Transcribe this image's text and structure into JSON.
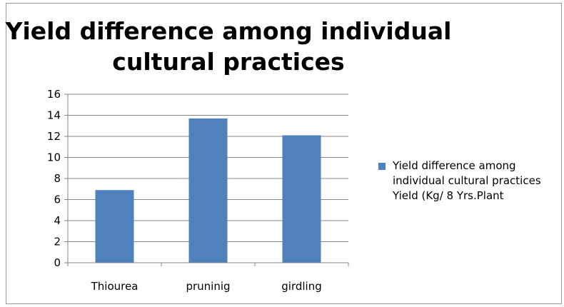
{
  "chart_data": {
    "type": "bar",
    "title": "Yield difference among individual cultural practices",
    "categories": [
      "Thiourea",
      "pruninig",
      "girdling"
    ],
    "series": [
      {
        "name": "Yield difference among individual cultural practices Yield (Kg/ 8 Yrs.Plant",
        "values": [
          6.9,
          13.7,
          12.1
        ],
        "color": "#4f81bd"
      }
    ],
    "ylim": [
      0,
      16
    ],
    "yticks": [
      0,
      2,
      4,
      6,
      8,
      10,
      12,
      14,
      16
    ],
    "grid": true,
    "legend": "right"
  },
  "colors": {
    "grid": "#868686",
    "axis": "#868686",
    "frame": "#9a9a9a"
  }
}
